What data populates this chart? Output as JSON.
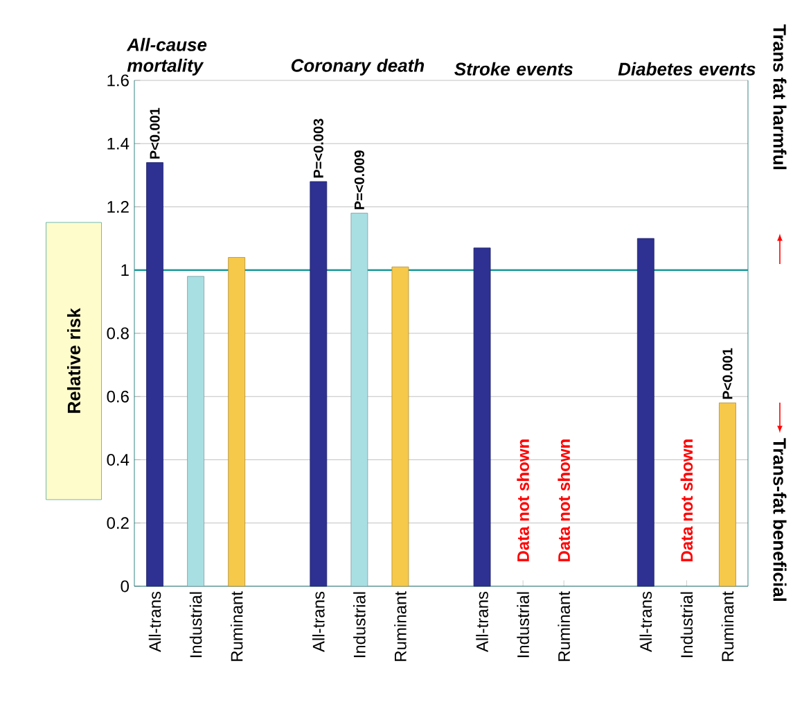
{
  "chart_data": {
    "type": "bar",
    "categories": [
      "All-trans",
      "Industrial",
      "Ruminant",
      "All-trans",
      "Industrial",
      "Ruminant",
      "All-trans",
      "Industrial",
      "Ruminant",
      "All-trans",
      "Industrial",
      "Ruminant"
    ],
    "values": [
      1.34,
      0.98,
      1.04,
      1.28,
      1.18,
      1.01,
      1.07,
      null,
      null,
      1.1,
      null,
      0.58
    ],
    "colors": [
      "#2e3192",
      "#a8dfe3",
      "#f7c94a",
      "#2e3192",
      "#a8dfe3",
      "#f7c94a",
      "#2e3192",
      "#a8dfe3",
      "#f7c94a",
      "#2e3192",
      "#a8dfe3",
      "#f7c94a"
    ],
    "value_labels": [
      "P<0.001",
      null,
      null,
      "P=<0.003",
      "P=<0.009",
      null,
      null,
      null,
      null,
      null,
      null,
      "P<0.001"
    ],
    "ylabel": "Relative risk",
    "ylim": [
      0,
      1.6
    ],
    "yticks": [
      0,
      0.2,
      0.4,
      0.6,
      0.8,
      1,
      1.2,
      1.4,
      1.6
    ],
    "grid": "y",
    "ref_lines": [
      {
        "axis": "y",
        "value": 1,
        "color": "#1a9a9a"
      }
    ],
    "annotations": [
      "All-cause mortality",
      "Coronary death",
      "Stroke events",
      "Diabetes events",
      "Data not shown",
      "Data not shown",
      "Data not shown",
      "Trans fat harmful",
      "Trans-fat beneficial"
    ]
  }
}
